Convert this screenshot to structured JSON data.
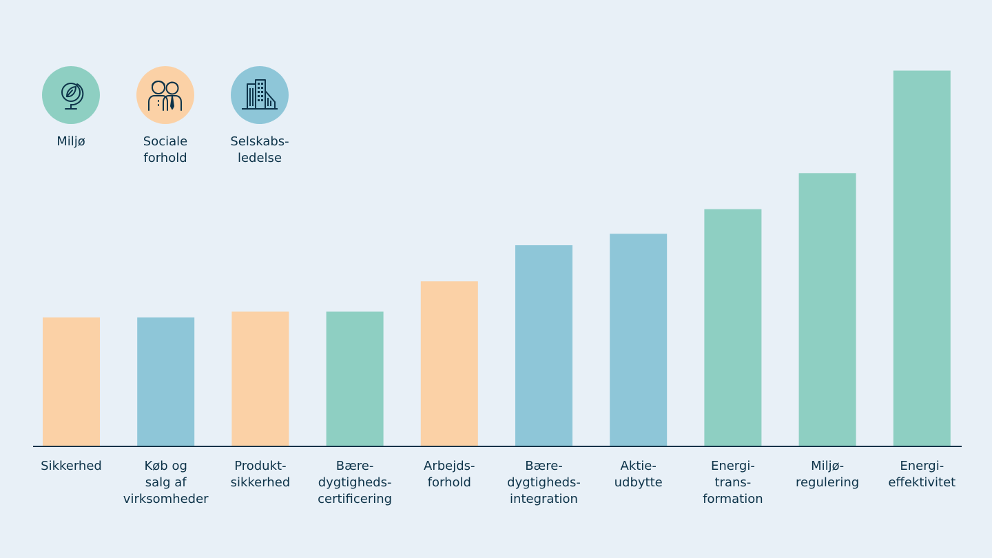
{
  "colors": {
    "background": "#e8f0f7",
    "ink": "#0d3349",
    "Miljø": "#8ecfc2",
    "Sociale forhold": "#fbd1a6",
    "Selskabsledelse": "#8ec6d8"
  },
  "legend": [
    {
      "key": "Miljø",
      "label": "Miljø",
      "icon": "globe-leaf-icon"
    },
    {
      "key": "Sociale forhold",
      "label": "Sociale\nforhold",
      "icon": "people-icon"
    },
    {
      "key": "Selskabsledelse",
      "label": "Selskabs-\nledelse",
      "icon": "office-building-icon"
    }
  ],
  "chart_data": {
    "type": "bar",
    "title": "",
    "xlabel": "",
    "ylabel": "",
    "ylim": [
      0,
      100
    ],
    "grid": false,
    "legend_position": "top-left",
    "categories": [
      "Sikkerhed",
      "Køb og\nsalg af\nvirksomheder",
      "Produkt-\nsikkerhed",
      "Bære-\ndygtigheds-\ncertificering",
      "Arbejds-\nforhold",
      "Bære-\ndygtigheds-\nintegration",
      "Aktie-\nudbytte",
      "Energi-\ntrans-\nformation",
      "Miljø-\nregulering",
      "Energi-\neffektivitet"
    ],
    "values": [
      34,
      34,
      35.5,
      35.5,
      43.5,
      53,
      56,
      62.5,
      72,
      99
    ],
    "groups": [
      "Sociale forhold",
      "Selskabsledelse",
      "Sociale forhold",
      "Miljø",
      "Sociale forhold",
      "Selskabsledelse",
      "Selskabsledelse",
      "Miljø",
      "Miljø",
      "Miljø"
    ]
  }
}
